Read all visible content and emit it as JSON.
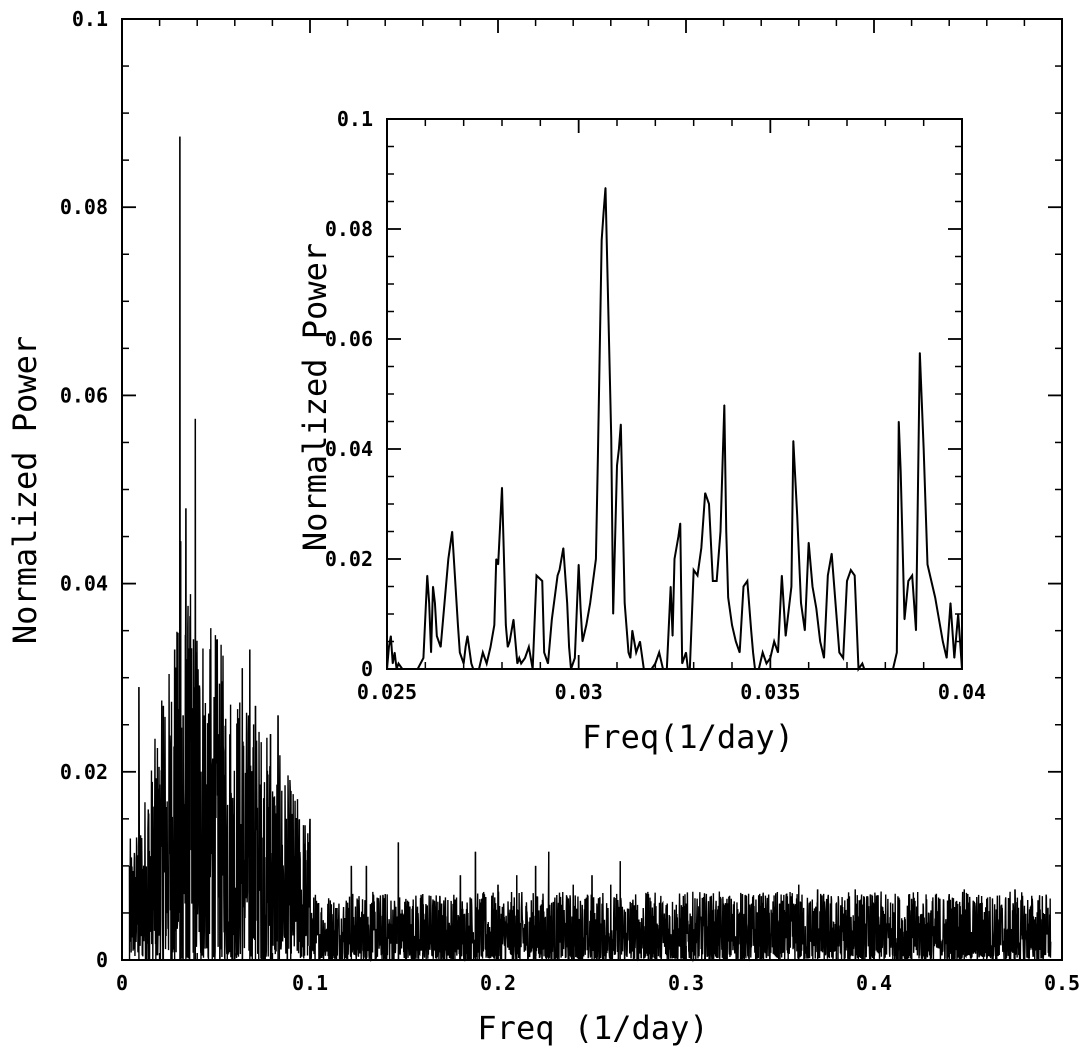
{
  "chart_data": [
    {
      "type": "line",
      "panel": "main",
      "title": "",
      "xlabel": "Freq (1/day)",
      "ylabel": "Normalized Power",
      "xlim": [
        0,
        0.5
      ],
      "ylim": [
        0,
        0.1
      ],
      "x_ticks": [
        0,
        0.1,
        0.2,
        0.3,
        0.4,
        0.5
      ],
      "x_tick_labels": [
        "0",
        "0.1",
        "0.2",
        "0.3",
        "0.4",
        "0.5"
      ],
      "y_ticks": [
        0,
        0.02,
        0.04,
        0.06,
        0.08,
        0.1
      ],
      "y_tick_labels": [
        "0",
        "0.02",
        "0.04",
        "0.06",
        "0.08",
        "0.1"
      ],
      "grid": false,
      "legend": "none",
      "line_color": "#000000",
      "freq_range": [
        0.004,
        0.494
      ],
      "series": [
        {
          "x": [
            0.004,
            0.009,
            0.014,
            0.018,
            0.022,
            0.026,
            0.028,
            0.0308,
            0.0312,
            0.0325,
            0.034,
            0.036,
            0.039,
            0.042,
            0.046,
            0.048,
            0.052,
            0.056,
            0.059,
            0.064,
            0.068,
            0.071,
            0.075,
            0.079,
            0.083,
            0.088,
            0.1,
            0.11,
            0.122,
            0.13,
            0.14,
            0.147,
            0.16,
            0.17,
            0.18,
            0.188,
            0.2,
            0.21,
            0.22,
            0.227,
            0.24,
            0.25,
            0.26,
            0.265,
            0.28,
            0.29,
            0.3,
            0.31,
            0.32,
            0.33,
            0.34,
            0.35,
            0.36,
            0.37,
            0.38,
            0.39,
            0.4,
            0.41,
            0.42,
            0.43,
            0.44,
            0.448,
            0.46,
            0.47,
            0.475,
            0.49
          ],
          "values": [
            0.01,
            0.029,
            0.016,
            0.014,
            0.027,
            0.016,
            0.033,
            0.0875,
            0.0445,
            0.026,
            0.048,
            0.03,
            0.0575,
            0.02,
            0.022,
            0.016,
            0.014,
            0.012,
            0.013,
            0.031,
            0.033,
            0.027,
            0.013,
            0.024,
            0.026,
            0.009,
            0.015,
            0.005,
            0.01,
            0.01,
            0.007,
            0.0125,
            0.007,
            0.006,
            0.009,
            0.0115,
            0.008,
            0.009,
            0.01,
            0.0115,
            0.008,
            0.009,
            0.008,
            0.0105,
            0.007,
            0.006,
            0.006,
            0.006,
            0.006,
            0.007,
            0.005,
            0.006,
            0.008,
            0.0075,
            0.006,
            0.0075,
            0.006,
            0.006,
            0.0065,
            0.005,
            0.007,
            0.0075,
            0.0065,
            0.0065,
            0.0075,
            0.005
          ]
        }
      ]
    },
    {
      "type": "line",
      "panel": "inset",
      "title": "",
      "xlabel": "Freq(1/day)",
      "ylabel": "Normalized Power",
      "xlim": [
        0.025,
        0.04
      ],
      "ylim": [
        0,
        0.1
      ],
      "x_ticks": [
        0.025,
        0.03,
        0.035,
        0.04
      ],
      "x_tick_labels": [
        "0.025",
        "0.03",
        "0.035",
        "0.04"
      ],
      "y_ticks": [
        0,
        0.02,
        0.04,
        0.06,
        0.08,
        0.1
      ],
      "y_tick_labels": [
        "0",
        "0.02",
        "0.04",
        "0.06",
        "0.08",
        "0.1"
      ],
      "grid": false,
      "legend": "none",
      "line_color": "#000000",
      "series": [
        {
          "x": [
            0.025,
            0.02505,
            0.0251,
            0.02515,
            0.0252,
            0.02525,
            0.0253,
            0.0254,
            0.0256,
            0.0258,
            0.02595,
            0.02605,
            0.0261,
            0.02615,
            0.0262,
            0.02625,
            0.0263,
            0.0264,
            0.0265,
            0.0266,
            0.0267,
            0.02685,
            0.0269,
            0.027,
            0.02705,
            0.0271,
            0.0272,
            0.02725,
            0.0273,
            0.0274,
            0.0275,
            0.0276,
            0.0277,
            0.0278,
            0.02785,
            0.0279,
            0.028,
            0.0281,
            0.02815,
            0.0282,
            0.0283,
            0.0284,
            0.02845,
            0.0285,
            0.0286,
            0.0287,
            0.0288,
            0.0289,
            0.02905,
            0.0291,
            0.0292,
            0.0293,
            0.02945,
            0.0295,
            0.0296,
            0.0297,
            0.02975,
            0.0298,
            0.0299,
            0.03,
            0.03005,
            0.0301,
            0.0302,
            0.0303,
            0.03045,
            0.0305,
            0.0306,
            0.03065,
            0.0307,
            0.03085,
            0.0309,
            0.031,
            0.03105,
            0.0311,
            0.0312,
            0.0313,
            0.03135,
            0.0314,
            0.0315,
            0.0316,
            0.0317,
            0.0318,
            0.0319,
            0.032,
            0.0321,
            0.0322,
            0.0323,
            0.0324,
            0.03245,
            0.0325,
            0.0326,
            0.03265,
            0.0327,
            0.0328,
            0.03285,
            0.0329,
            0.033,
            0.0331,
            0.0332,
            0.03325,
            0.0333,
            0.0334,
            0.0335,
            0.0336,
            0.0337,
            0.0338,
            0.03385,
            0.0339,
            0.034,
            0.0341,
            0.0342,
            0.0343,
            0.0344,
            0.0345,
            0.03455,
            0.0346,
            0.0347,
            0.0348,
            0.0349,
            0.035,
            0.0351,
            0.0352,
            0.0353,
            0.0354,
            0.0355,
            0.03555,
            0.0356,
            0.0357,
            0.0358,
            0.0359,
            0.036,
            0.0361,
            0.0362,
            0.0363,
            0.0364,
            0.0365,
            0.0366,
            0.0367,
            0.0368,
            0.0369,
            0.037,
            0.0371,
            0.0372,
            0.0373,
            0.0374,
            0.03745,
            0.0375,
            0.0376,
            0.0377,
            0.0378,
            0.0379,
            0.038,
            0.0381,
            0.0382,
            0.0383,
            0.03835,
            0.0384,
            0.0385,
            0.0386,
            0.0387,
            0.0388,
            0.0389,
            0.039,
            0.0391,
            0.0392,
            0.0393,
            0.0394,
            0.0395,
            0.0396,
            0.0397,
            0.0398,
            0.0399,
            0.04
          ],
          "values": [
            0,
            0.004,
            0.006,
            0.001,
            0.003,
            0.0,
            0.001,
            0.0,
            0.0,
            0.0,
            0.002,
            0.017,
            0.012,
            0.003,
            0.015,
            0.012,
            0.006,
            0.004,
            0.012,
            0.02,
            0.025,
            0.008,
            0.003,
            0.001,
            0.004,
            0.006,
            0.001,
            0.0,
            0.0,
            0.0,
            0.003,
            0.001,
            0.004,
            0.008,
            0.02,
            0.019,
            0.033,
            0.008,
            0.004,
            0.005,
            0.009,
            0.001,
            0.002,
            0.001,
            0.002,
            0.004,
            0.0,
            0.017,
            0.016,
            0.003,
            0.001,
            0.009,
            0.017,
            0.018,
            0.022,
            0.012,
            0.004,
            0.0,
            0.002,
            0.019,
            0.011,
            0.005,
            0.008,
            0.012,
            0.02,
            0.038,
            0.078,
            0.083,
            0.0875,
            0.042,
            0.01,
            0.037,
            0.04,
            0.0445,
            0.012,
            0.003,
            0.002,
            0.007,
            0.003,
            0.005,
            0.0,
            0.0,
            0.0,
            0.001,
            0.003,
            0.0,
            0.0,
            0.015,
            0.006,
            0.02,
            0.024,
            0.0265,
            0.001,
            0.003,
            0.0,
            0.0,
            0.018,
            0.017,
            0.022,
            0.027,
            0.032,
            0.03,
            0.016,
            0.016,
            0.025,
            0.048,
            0.025,
            0.013,
            0.008,
            0.005,
            0.003,
            0.015,
            0.016,
            0.007,
            0.003,
            0.0,
            0.0,
            0.003,
            0.001,
            0.002,
            0.005,
            0.003,
            0.017,
            0.006,
            0.012,
            0.015,
            0.0415,
            0.028,
            0.012,
            0.007,
            0.023,
            0.015,
            0.011,
            0.005,
            0.002,
            0.017,
            0.021,
            0.012,
            0.003,
            0.002,
            0.016,
            0.018,
            0.017,
            0.0,
            0.001,
            0.0,
            0.0,
            0.0,
            0.0,
            0.0,
            0.0,
            0.0,
            0.0,
            0.0,
            0.003,
            0.045,
            0.036,
            0.009,
            0.016,
            0.017,
            0.007,
            0.0575,
            0.04,
            0.019,
            0.016,
            0.013,
            0.009,
            0.005,
            0.002,
            0.012,
            0.002,
            0.01,
            0.0
          ]
        }
      ]
    }
  ]
}
